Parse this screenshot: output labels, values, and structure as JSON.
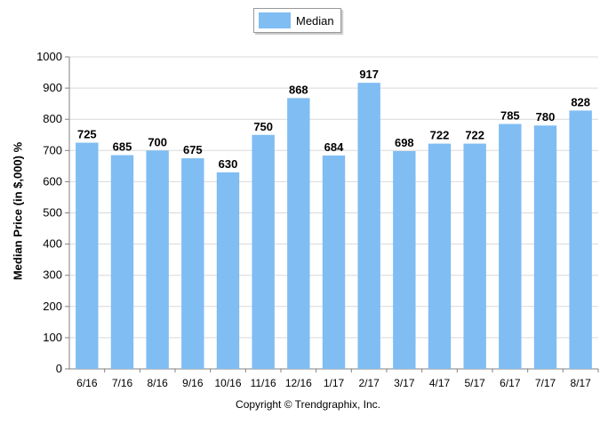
{
  "chart_data": {
    "type": "bar",
    "categories": [
      "6/16",
      "7/16",
      "8/16",
      "9/16",
      "10/16",
      "11/16",
      "12/16",
      "1/17",
      "2/17",
      "3/17",
      "4/17",
      "5/17",
      "6/17",
      "7/17",
      "8/17"
    ],
    "series": [
      {
        "name": "Median",
        "values": [
          725,
          685,
          700,
          675,
          630,
          750,
          868,
          684,
          917,
          698,
          722,
          722,
          785,
          780,
          828
        ]
      }
    ],
    "ylabel": "Median Price (in $,000) %",
    "ylim": [
      0,
      1000
    ],
    "yticks": [
      0,
      100,
      200,
      300,
      400,
      500,
      600,
      700,
      800,
      900,
      1000
    ],
    "grid": true,
    "legend_position": "top-center",
    "bar_color": "#7fbdf3",
    "grid_color": "#d9d9d9"
  },
  "footer": {
    "copyright": "Copyright © Trendgraphix, Inc."
  }
}
